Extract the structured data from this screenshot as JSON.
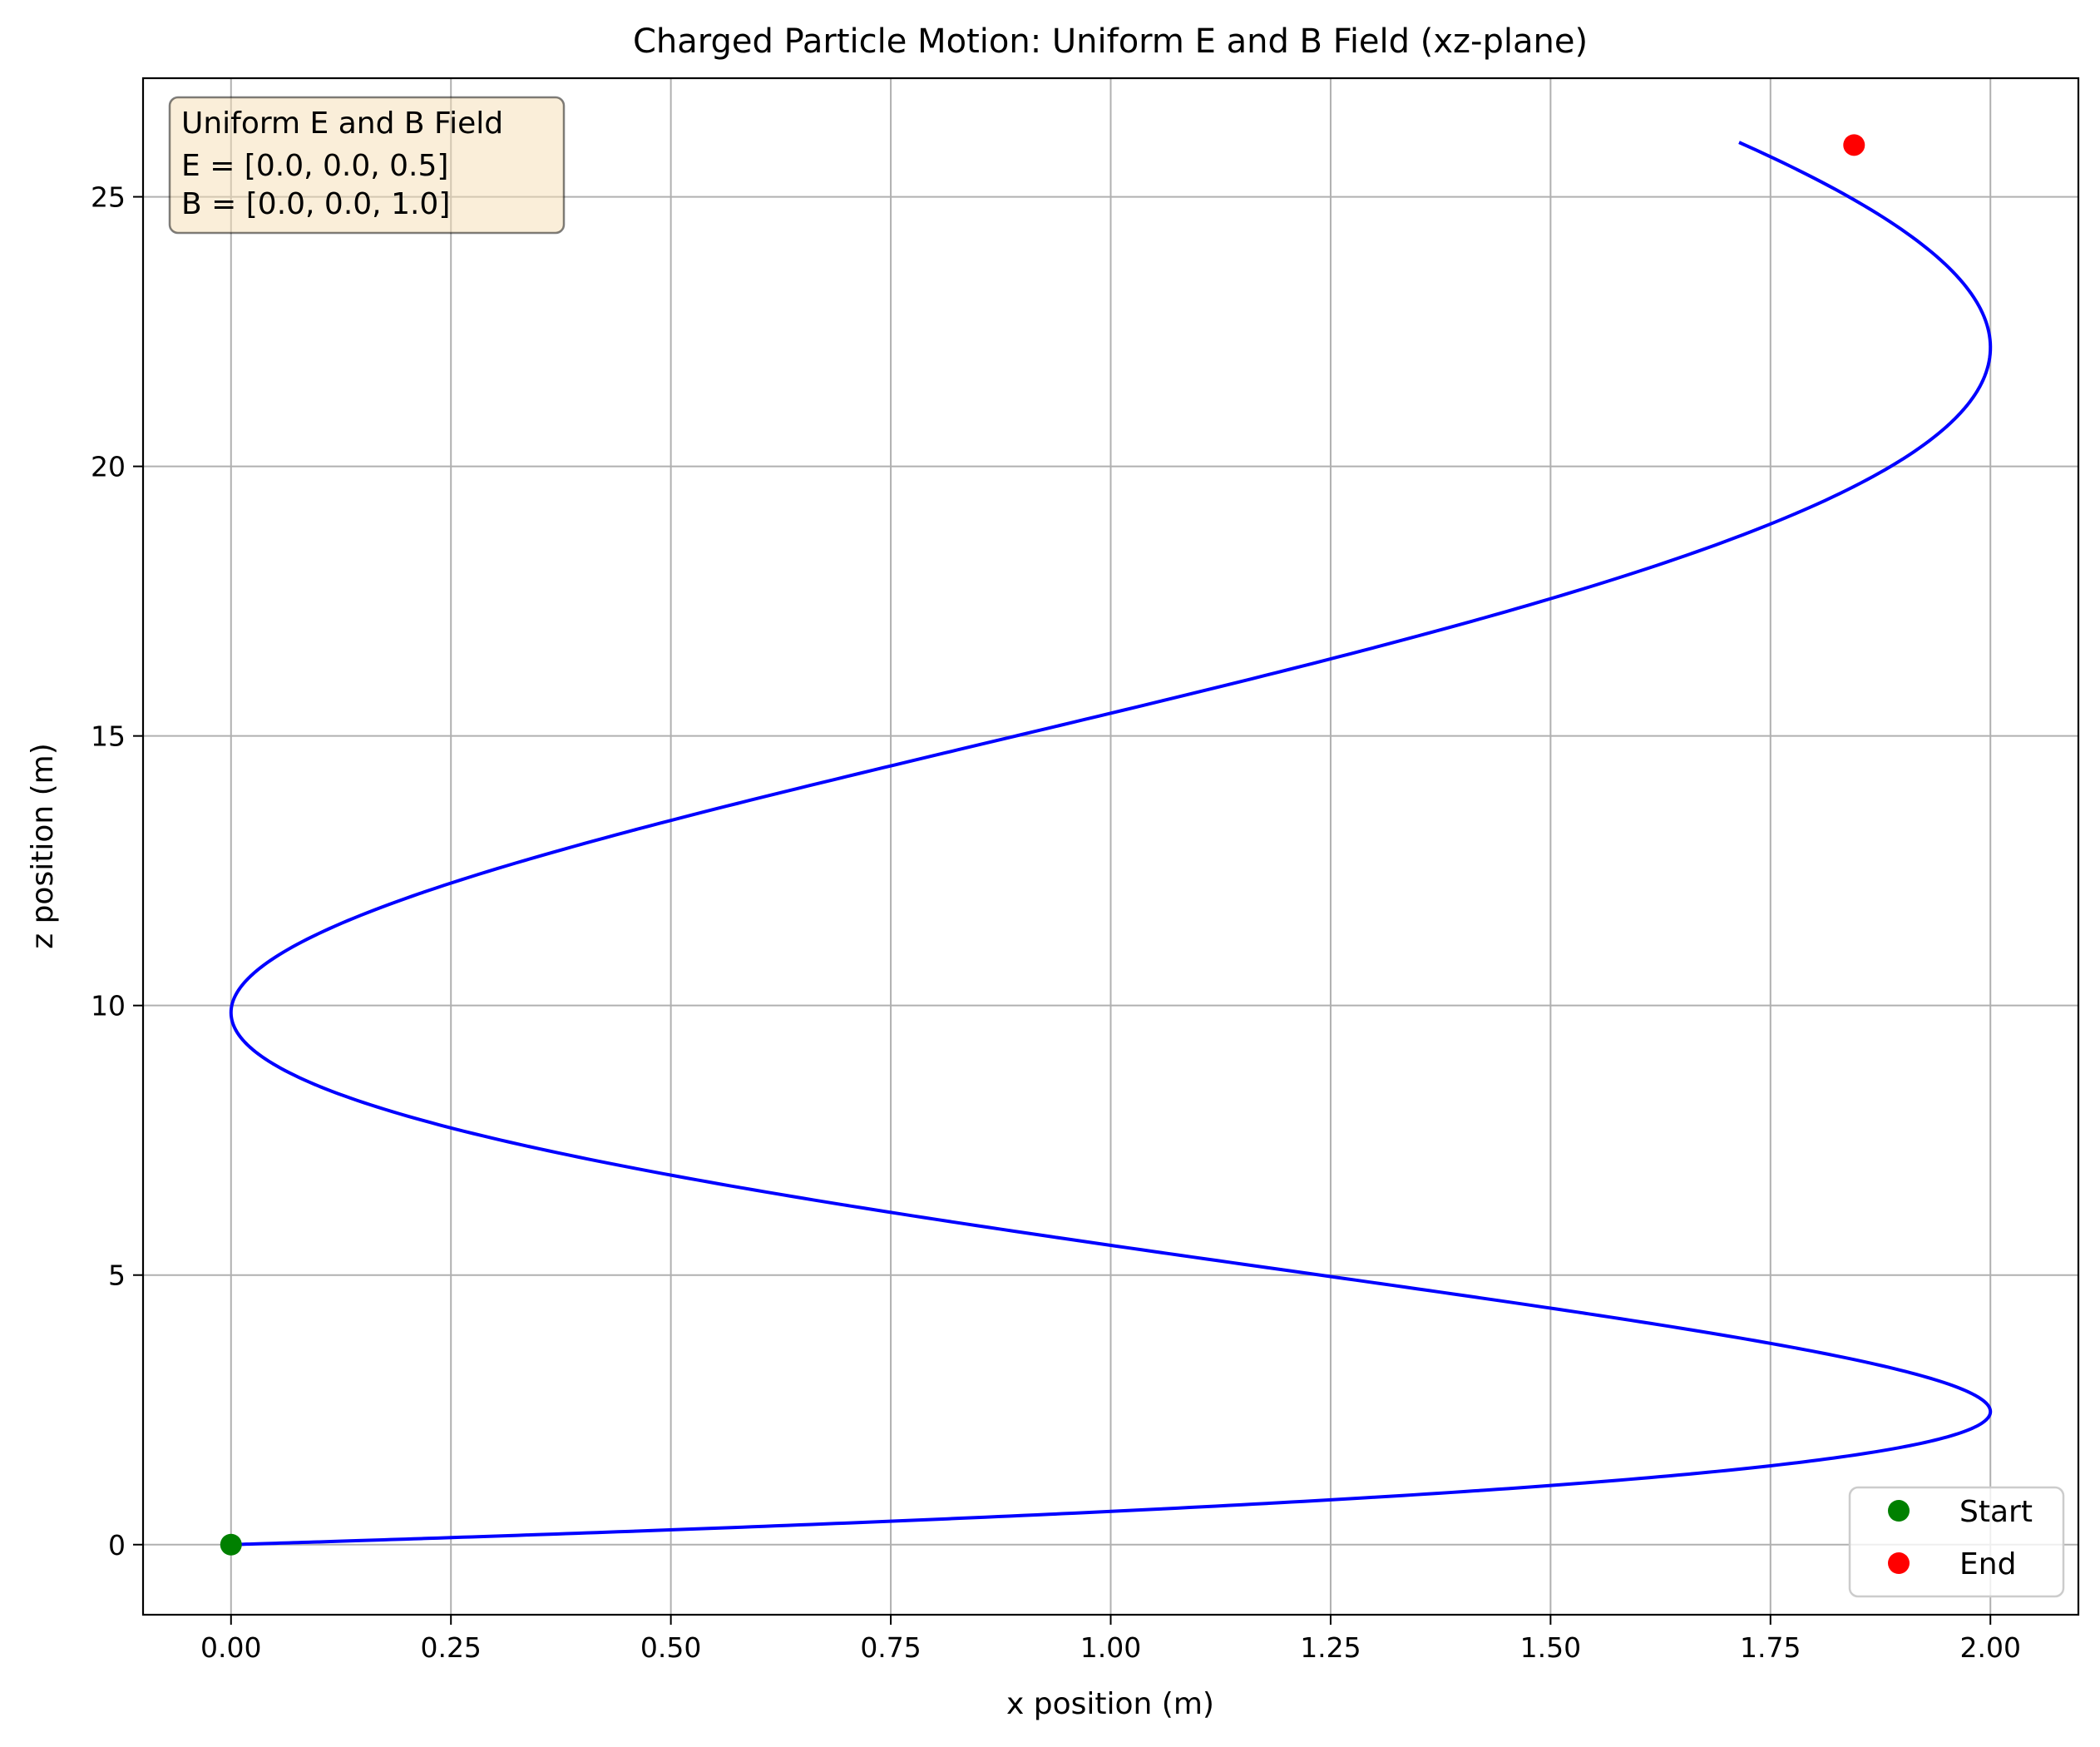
{
  "chart_data": {
    "type": "line",
    "title": "Charged Particle Motion: Uniform E and B Field (xz-plane)",
    "xlabel": "x position (m)",
    "ylabel": "z position (m)",
    "xlim": [
      -0.1,
      2.1
    ],
    "ylim": [
      -1.3,
      27.2
    ],
    "xticks": [
      "0.00",
      "0.25",
      "0.50",
      "0.75",
      "1.00",
      "1.25",
      "1.50",
      "1.75",
      "2.00"
    ],
    "yticks": [
      "0",
      "5",
      "10",
      "15",
      "20",
      "25"
    ],
    "grid": true,
    "legend_position": "lower right",
    "annotation": {
      "lines": [
        "Uniform E and B Field",
        "E = [0.0, 0.0, 0.5]",
        "B = [0.0, 0.0, 1.0]"
      ],
      "position": "upper left",
      "background": "#f5deb3"
    },
    "series": [
      {
        "name": "",
        "color": "#0000ff",
        "style": "line",
        "model": "x = 1 - cos(t), z = 0.25 t^2",
        "t_range": [
          0,
          10.2
        ],
        "x": [
          0.0,
          0.5,
          1.0,
          1.75,
          2.0,
          1.75,
          1.0,
          0.25,
          0.0,
          0.25,
          1.0,
          1.75,
          2.0,
          1.845
        ],
        "y": [
          0.0,
          0.27,
          0.68,
          1.72,
          2.47,
          3.38,
          6.04,
          9.31,
          10.5,
          12.88,
          16.21,
          19.78,
          22.67,
          25.96
        ]
      },
      {
        "name": "Start",
        "color": "#008000",
        "style": "marker",
        "x": [
          0.0
        ],
        "y": [
          0.0
        ]
      },
      {
        "name": "End",
        "color": "#ff0000",
        "style": "marker",
        "x": [
          1.845
        ],
        "y": [
          25.96
        ]
      }
    ]
  }
}
